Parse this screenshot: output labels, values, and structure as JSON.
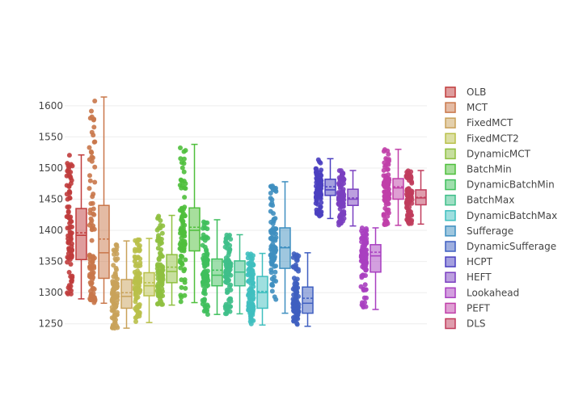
{
  "chart_data": {
    "type": "box",
    "title": "",
    "xlabel": "",
    "ylabel": "",
    "ylim": [
      1238,
      1640
    ],
    "yticks": [
      1250,
      1300,
      1350,
      1400,
      1450,
      1500,
      1550,
      1600
    ],
    "ytick_labels": [
      "1250",
      "1300",
      "1350",
      "1400",
      "1450",
      "1500",
      "1550",
      "1600"
    ],
    "grid": true,
    "boxmean": "dashed line",
    "points": "all",
    "legend_position": "right",
    "series": [
      {
        "name": "OLB",
        "color": "#c03c3c",
        "min": 1290,
        "q1": 1353,
        "median": 1392,
        "mean": 1396,
        "q3": 1435,
        "max": 1521
      },
      {
        "name": "MCT",
        "color": "#c9774a",
        "min": 1283,
        "q1": 1323,
        "median": 1364,
        "mean": 1386,
        "q3": 1440,
        "max": 1614
      },
      {
        "name": "FixedMCT",
        "color": "#c9a25a",
        "min": 1243,
        "q1": 1275,
        "median": 1294,
        "mean": 1300,
        "q3": 1321,
        "max": 1383
      },
      {
        "name": "FixedMCT2",
        "color": "#b9c04a",
        "min": 1252,
        "q1": 1295,
        "median": 1311,
        "mean": 1316,
        "q3": 1332,
        "max": 1387
      },
      {
        "name": "DynamicMCT",
        "color": "#8fc040",
        "min": 1280,
        "q1": 1316,
        "median": 1334,
        "mean": 1341,
        "q3": 1361,
        "max": 1424
      },
      {
        "name": "BatchMin",
        "color": "#4fbf3c",
        "min": 1284,
        "q1": 1367,
        "median": 1400,
        "mean": 1405,
        "q3": 1436,
        "max": 1538
      },
      {
        "name": "DynamicBatchMin",
        "color": "#3fbf5c",
        "min": 1265,
        "q1": 1311,
        "median": 1328,
        "mean": 1336,
        "q3": 1354,
        "max": 1417
      },
      {
        "name": "BatchMax",
        "color": "#3fbf8a",
        "min": 1266,
        "q1": 1311,
        "median": 1333,
        "mean": 1333,
        "q3": 1351,
        "max": 1393
      },
      {
        "name": "DynamicBatchMax",
        "color": "#3fbfbf",
        "min": 1248,
        "q1": 1275,
        "median": 1300,
        "mean": 1302,
        "q3": 1326,
        "max": 1363
      },
      {
        "name": "Sufferage",
        "color": "#3f8fc0",
        "min": 1267,
        "q1": 1339,
        "median": 1372,
        "mean": 1373,
        "q3": 1404,
        "max": 1478
      },
      {
        "name": "DynamicSufferage",
        "color": "#3f5fc0",
        "min": 1246,
        "q1": 1267,
        "median": 1283,
        "mean": 1291,
        "q3": 1309,
        "max": 1364
      },
      {
        "name": "HCPT",
        "color": "#4a3fc0",
        "min": 1419,
        "q1": 1456,
        "median": 1465,
        "mean": 1470,
        "q3": 1482,
        "max": 1515
      },
      {
        "name": "HEFT",
        "color": "#7a3fc0",
        "min": 1407,
        "q1": 1440,
        "median": 1450,
        "mean": 1452,
        "q3": 1466,
        "max": 1496
      },
      {
        "name": "Lookahead",
        "color": "#a83fc0",
        "min": 1273,
        "q1": 1333,
        "median": 1359,
        "mean": 1365,
        "q3": 1377,
        "max": 1404
      },
      {
        "name": "PEFT",
        "color": "#c03fa8",
        "min": 1408,
        "q1": 1450,
        "median": 1468,
        "mean": 1470,
        "q3": 1483,
        "max": 1530
      },
      {
        "name": "DLS",
        "color": "#c03c5c",
        "min": 1410,
        "q1": 1441,
        "median": 1452,
        "mean": 1453,
        "q3": 1465,
        "max": 1496
      }
    ]
  }
}
